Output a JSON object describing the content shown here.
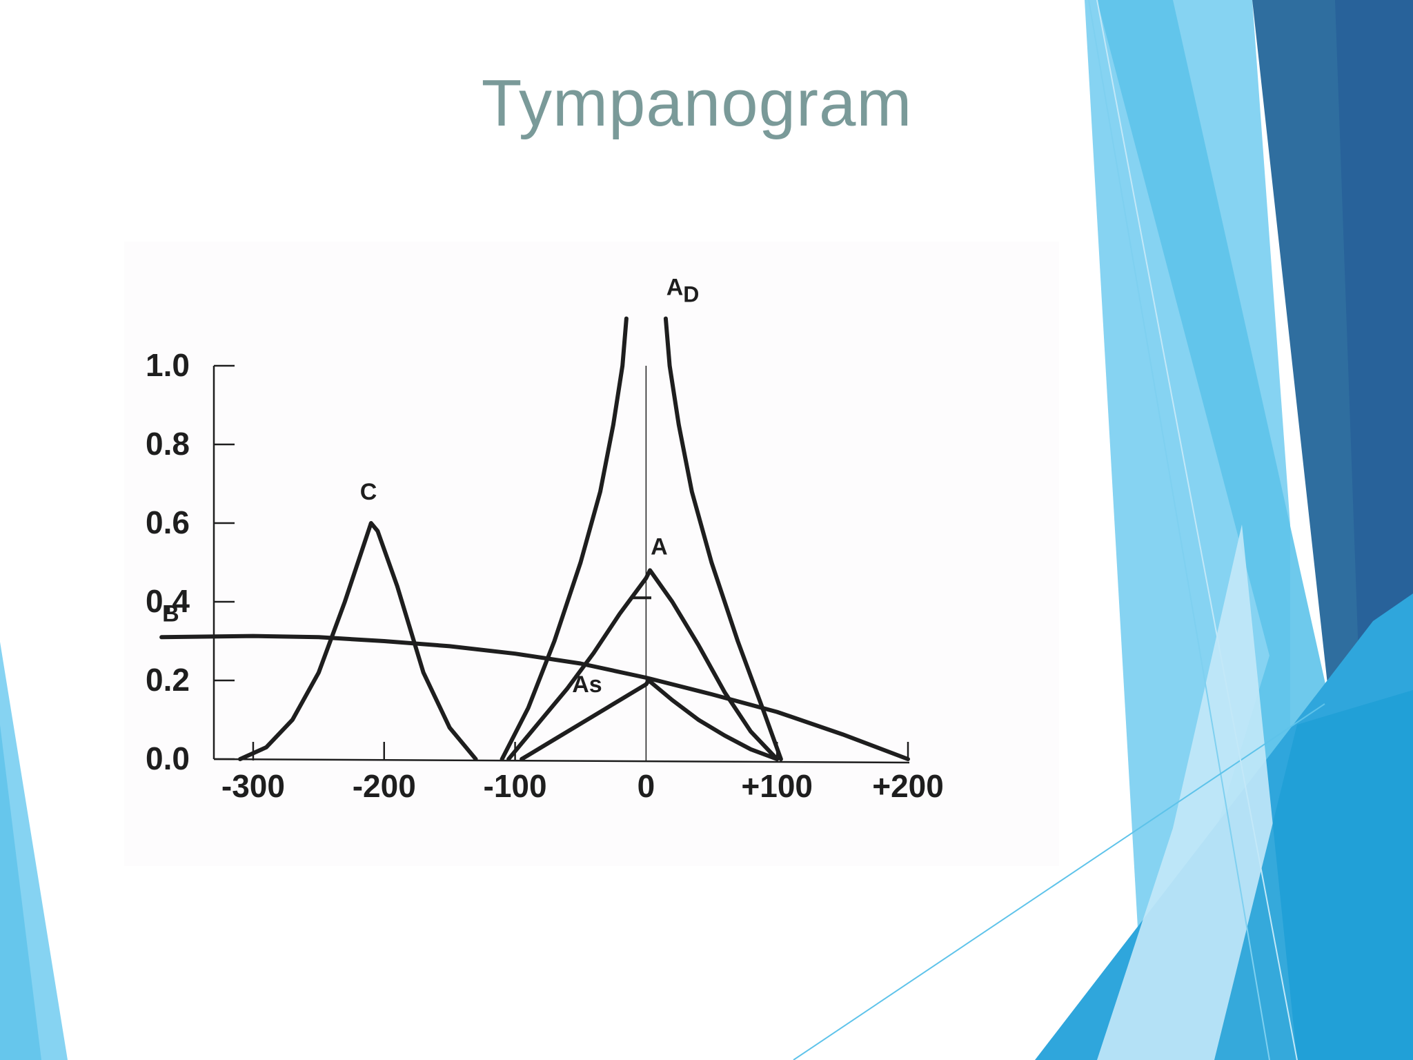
{
  "slide": {
    "title": "Tympanogram",
    "colors": {
      "title": "#7a9a99",
      "accent_dark": "#2a5f93",
      "accent_mid": "#3fb1e3",
      "accent_light": "#8fd7f2"
    }
  },
  "chart_data": {
    "type": "line",
    "title": "",
    "xlabel": "",
    "ylabel": "",
    "xlim": [
      -330,
      210
    ],
    "ylim": [
      0,
      1.0
    ],
    "grid": false,
    "x_ticks": [
      {
        "value": -300,
        "label": "-300"
      },
      {
        "value": -200,
        "label": "-200"
      },
      {
        "value": -100,
        "label": "-100"
      },
      {
        "value": 0,
        "label": "0"
      },
      {
        "value": 100,
        "label": "+100"
      },
      {
        "value": 200,
        "label": "+200"
      }
    ],
    "y_ticks": [
      {
        "value": 0.0,
        "label": "0.0"
      },
      {
        "value": 0.2,
        "label": "0.2"
      },
      {
        "value": 0.4,
        "label": "0.4"
      },
      {
        "value": 0.6,
        "label": "0.6"
      },
      {
        "value": 0.8,
        "label": "0.8"
      },
      {
        "value": 1.0,
        "label": "1.0"
      }
    ],
    "series": [
      {
        "name": "B",
        "label": "B",
        "x": [
          -370,
          -300,
          -250,
          -200,
          -150,
          -100,
          -50,
          0,
          50,
          100,
          150,
          200
        ],
        "y": [
          0.31,
          0.313,
          0.31,
          0.3,
          0.287,
          0.268,
          0.243,
          0.207,
          0.165,
          0.12,
          0.063,
          0.0
        ]
      },
      {
        "name": "C",
        "label": "C",
        "x": [
          -310,
          -290,
          -270,
          -250,
          -230,
          -215,
          -210,
          -205,
          -190,
          -170,
          -150,
          -130
        ],
        "y": [
          0.0,
          0.03,
          0.1,
          0.22,
          0.4,
          0.55,
          0.6,
          0.58,
          0.44,
          0.22,
          0.08,
          0.0
        ]
      },
      {
        "name": "A_D_left",
        "label": "AD",
        "x": [
          -110,
          -90,
          -70,
          -50,
          -35,
          -25,
          -18,
          -15
        ],
        "y": [
          0.0,
          0.13,
          0.3,
          0.5,
          0.68,
          0.85,
          1.0,
          1.12
        ]
      },
      {
        "name": "A_D_right",
        "label": "",
        "x": [
          15,
          18,
          25,
          35,
          50,
          70,
          90,
          103
        ],
        "y": [
          1.12,
          1.0,
          0.85,
          0.68,
          0.5,
          0.3,
          0.12,
          0.0
        ]
      },
      {
        "name": "A",
        "label": "A",
        "x": [
          -105,
          -80,
          -60,
          -40,
          -20,
          0,
          3,
          20,
          40,
          60,
          80,
          100
        ],
        "y": [
          0.0,
          0.1,
          0.18,
          0.27,
          0.37,
          0.46,
          0.48,
          0.4,
          0.29,
          0.17,
          0.07,
          0.0
        ]
      },
      {
        "name": "As",
        "label": "As",
        "x": [
          -95,
          -70,
          -50,
          -30,
          -10,
          0,
          2,
          20,
          40,
          60,
          80,
          100
        ],
        "y": [
          0.0,
          0.05,
          0.09,
          0.13,
          0.17,
          0.19,
          0.2,
          0.15,
          0.1,
          0.06,
          0.025,
          0.0
        ]
      }
    ],
    "annotations": [
      {
        "text": "AD",
        "x": 28,
        "y": 1.18,
        "main": "A",
        "sub": "D"
      },
      {
        "text": "C",
        "x": -212,
        "y": 0.66
      },
      {
        "text": "A",
        "x": 10,
        "y": 0.52
      },
      {
        "text": "B",
        "x": -363,
        "y": 0.35
      },
      {
        "text": "As",
        "x": -45,
        "y": 0.17
      }
    ]
  }
}
